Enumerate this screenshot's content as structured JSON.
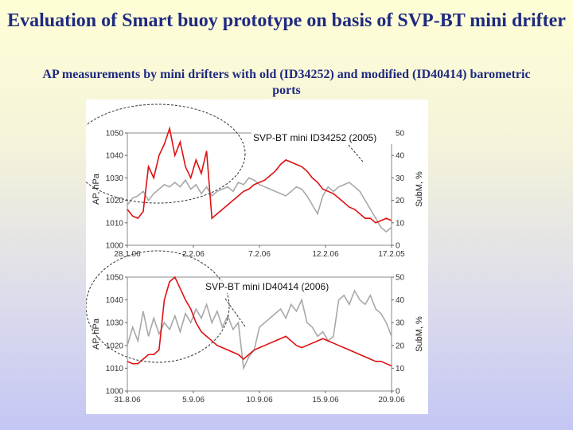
{
  "slide": {
    "title": "Evaluation of Smart buoy prototype on basis of SVP-BT mini drifter",
    "subtitle": "AP measurements by mini drifters with old (ID34252) and modified (ID40414) barometric ports"
  },
  "chart_data": [
    {
      "type": "line",
      "annotation": "SVP-BT mini ID34252 (2005)",
      "ylabel": "AP, hPa",
      "y2label": "SubM, %",
      "ylim": [
        1000,
        1050
      ],
      "y2lim": [
        0,
        50
      ],
      "yticks": [
        "1000",
        "1010",
        "1020",
        "1030",
        "1040",
        "1050"
      ],
      "y2ticks": [
        "0",
        "10",
        "20",
        "30",
        "40",
        "50"
      ],
      "xticks": [
        "28.1.06",
        "2.2.06",
        "7.2.06",
        "12.2.06",
        "17.2.05"
      ],
      "series": [
        {
          "role": "submergence",
          "axis": "y2",
          "style": "gray-area",
          "color": "#a8a8a8",
          "x": [
            0,
            2,
            4,
            6,
            8,
            10,
            12,
            14,
            16,
            18,
            20,
            22,
            24,
            26,
            28,
            30,
            32,
            34,
            36,
            38,
            40,
            42,
            44,
            46,
            48,
            50,
            52,
            54,
            56,
            58,
            60,
            62,
            64,
            66,
            68,
            70,
            72,
            74,
            76,
            78,
            80,
            82,
            84,
            86,
            88,
            90,
            92,
            94,
            96,
            98,
            100
          ],
          "values": [
            18,
            21,
            22,
            24,
            20,
            23,
            25,
            27,
            26,
            28,
            26,
            29,
            25,
            27,
            23,
            26,
            22,
            24,
            25,
            26,
            24,
            28,
            27,
            30,
            29,
            27,
            26,
            25,
            24,
            23,
            22,
            24,
            26,
            25,
            22,
            18,
            14,
            22,
            26,
            24,
            26,
            27,
            28,
            26,
            24,
            20,
            16,
            12,
            8,
            6,
            8
          ]
        },
        {
          "role": "pressure",
          "axis": "y1",
          "style": "line",
          "color": "#e01010",
          "x": [
            0,
            2,
            4,
            6,
            8,
            10,
            12,
            14,
            16,
            18,
            20,
            22,
            24,
            26,
            28,
            30,
            32,
            34,
            36,
            38,
            40,
            42,
            44,
            46,
            48,
            50,
            52,
            54,
            56,
            58,
            60,
            62,
            64,
            66,
            68,
            70,
            72,
            74,
            76,
            78,
            80,
            82,
            84,
            86,
            88,
            90,
            92,
            94,
            96,
            98,
            100
          ],
          "values": [
            1016,
            1013,
            1012,
            1015,
            1035,
            1030,
            1040,
            1045,
            1052,
            1040,
            1046,
            1035,
            1030,
            1038,
            1032,
            1042,
            1012,
            1014,
            1016,
            1018,
            1020,
            1022,
            1024,
            1025,
            1027,
            1028,
            1029,
            1031,
            1033,
            1036,
            1038,
            1037,
            1036,
            1035,
            1033,
            1030,
            1028,
            1025,
            1024,
            1023,
            1021,
            1019,
            1017,
            1016,
            1014,
            1012,
            1012,
            1010,
            1011,
            1012,
            1011
          ]
        }
      ]
    },
    {
      "type": "line",
      "annotation": "SVP-BT mini ID40414 (2006)",
      "ylabel": "AP, hPa",
      "y2label": "SubM, %",
      "ylim": [
        1000,
        1050
      ],
      "y2lim": [
        0,
        50
      ],
      "yticks": [
        "1000",
        "1010",
        "1020",
        "1030",
        "1040",
        "1050"
      ],
      "y2ticks": [
        "0",
        "10",
        "20",
        "30",
        "40",
        "50"
      ],
      "xticks": [
        "31.8.06",
        "5.9.06",
        "10.9.06",
        "15.9.06",
        "20.9.06"
      ],
      "series": [
        {
          "role": "submergence",
          "axis": "y2",
          "style": "gray-area-dark-edge",
          "color": "#a8a8a8",
          "edge": "#10106a",
          "x": [
            0,
            2,
            4,
            6,
            8,
            10,
            12,
            14,
            16,
            18,
            20,
            22,
            24,
            26,
            28,
            30,
            32,
            34,
            36,
            38,
            40,
            42,
            44,
            46,
            48,
            50,
            52,
            54,
            56,
            58,
            60,
            62,
            64,
            66,
            68,
            70,
            72,
            74,
            76,
            78,
            80,
            82,
            84,
            86,
            88,
            90,
            92,
            94,
            96,
            98,
            100
          ],
          "values": [
            20,
            28,
            22,
            35,
            24,
            32,
            25,
            30,
            27,
            33,
            26,
            34,
            30,
            36,
            32,
            38,
            30,
            35,
            28,
            33,
            27,
            30,
            10,
            15,
            18,
            28,
            30,
            32,
            34,
            36,
            32,
            38,
            35,
            40,
            30,
            28,
            24,
            26,
            22,
            24,
            40,
            42,
            38,
            44,
            40,
            38,
            42,
            36,
            34,
            30,
            24
          ]
        },
        {
          "role": "pressure",
          "axis": "y1",
          "style": "line",
          "color": "#e01010",
          "x": [
            0,
            2,
            4,
            6,
            8,
            10,
            12,
            14,
            16,
            18,
            20,
            22,
            24,
            26,
            28,
            30,
            32,
            34,
            36,
            38,
            40,
            42,
            44,
            46,
            48,
            50,
            52,
            54,
            56,
            58,
            60,
            62,
            64,
            66,
            68,
            70,
            72,
            74,
            76,
            78,
            80,
            82,
            84,
            86,
            88,
            90,
            92,
            94,
            96,
            98,
            100
          ],
          "values": [
            1013,
            1012,
            1012,
            1014,
            1016,
            1016,
            1018,
            1040,
            1048,
            1050,
            1045,
            1040,
            1036,
            1030,
            1026,
            1024,
            1022,
            1020,
            1019,
            1018,
            1017,
            1016,
            1014,
            1016,
            1018,
            1019,
            1020,
            1021,
            1022,
            1023,
            1024,
            1022,
            1020,
            1019,
            1020,
            1021,
            1022,
            1023,
            1022,
            1021,
            1020,
            1019,
            1018,
            1017,
            1016,
            1015,
            1014,
            1013,
            1013,
            1012,
            1011
          ]
        }
      ]
    }
  ]
}
